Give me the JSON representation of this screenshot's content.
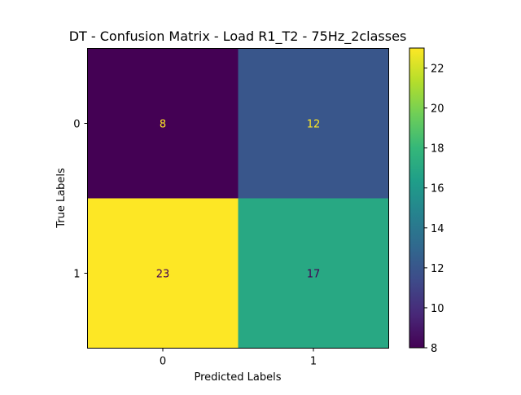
{
  "chart_data": {
    "type": "heatmap",
    "title": "DT - Confusion Matrix - Load R1_T2 - 75Hz_2classes",
    "xlabel": "Predicted Labels",
    "ylabel": "True Labels",
    "x_categories": [
      "0",
      "1"
    ],
    "y_categories": [
      "0",
      "1"
    ],
    "values": [
      [
        8,
        12
      ],
      [
        23,
        17
      ]
    ],
    "colormap": "viridis",
    "colorbar": {
      "range": [
        8,
        23
      ],
      "ticks": [
        8,
        10,
        12,
        14,
        16,
        18,
        20,
        22
      ]
    },
    "label_colors": {
      "on_dark": "#fde725",
      "on_light": "#440154"
    }
  }
}
